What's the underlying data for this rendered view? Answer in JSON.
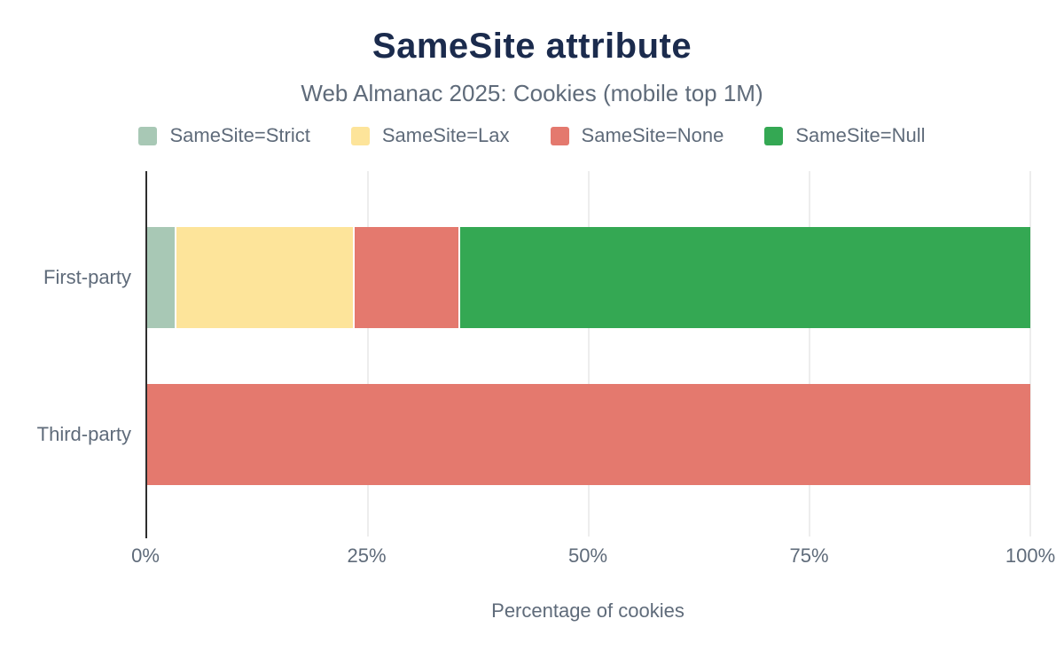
{
  "header": {
    "title": "SameSite attribute",
    "subtitle": "Web Almanac 2025: Cookies (mobile top 1M)"
  },
  "colors": {
    "title": "#1b2b4d",
    "text_muted": "#5f6b7a",
    "axis_line": "#2e2e2e",
    "gridline": "#ededed",
    "background": "#ffffff"
  },
  "chart_data": {
    "type": "bar",
    "orientation": "horizontal",
    "stacked": true,
    "title": "SameSite attribute",
    "subtitle": "Web Almanac 2025: Cookies (mobile top 1M)",
    "xlabel": "Percentage of cookies",
    "ylabel": "",
    "xlim": [
      0,
      100
    ],
    "x_ticks": [
      "0%",
      "25%",
      "50%",
      "75%",
      "100%"
    ],
    "x_tick_values": [
      0,
      25,
      50,
      75,
      100
    ],
    "grid": true,
    "legend_position": "top",
    "categories": [
      "First-party",
      "Third-party"
    ],
    "series": [
      {
        "name": "SameSite=Strict",
        "color": "#a8c8b5",
        "values": [
          3.1,
          0
        ]
      },
      {
        "name": "SameSite=Lax",
        "color": "#fde49a",
        "values": [
          20.2,
          0
        ]
      },
      {
        "name": "SameSite=None",
        "color": "#e4796e",
        "values": [
          11.9,
          100
        ]
      },
      {
        "name": "SameSite=Null",
        "color": "#34a853",
        "values": [
          64.8,
          0
        ]
      }
    ]
  }
}
